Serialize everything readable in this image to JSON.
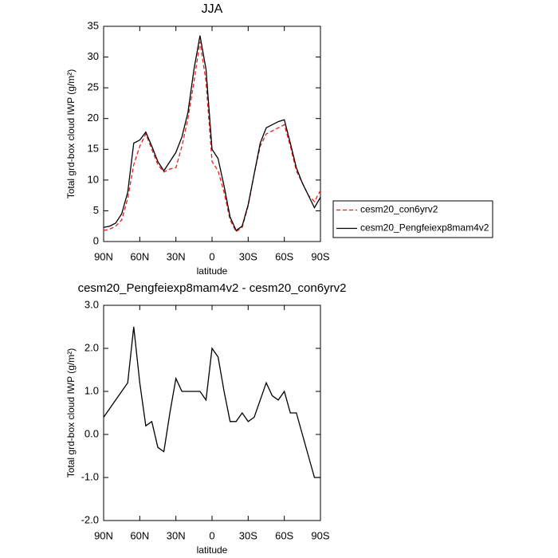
{
  "chart_data": [
    {
      "type": "line",
      "title": "JJA",
      "xlabel": "latitude",
      "ylabel": "Total grd-box cloud IWP (g/m²)",
      "x": [
        90,
        85,
        80,
        75,
        70,
        65,
        60,
        55,
        50,
        45,
        40,
        35,
        30,
        25,
        20,
        15,
        10,
        5,
        0,
        -5,
        -10,
        -15,
        -20,
        -25,
        -30,
        -35,
        -40,
        -45,
        -50,
        -55,
        -60,
        -65,
        -70,
        -75,
        -80,
        -85,
        -90
      ],
      "series": [
        {
          "name": "cesm20_con6yrv2",
          "color": "#e8201c",
          "dash": true,
          "values": [
            1.8,
            2,
            2.5,
            3.5,
            7,
            12.5,
            15.5,
            17.5,
            15,
            12.5,
            11.3,
            11.8,
            12,
            15.5,
            20,
            26,
            32.5,
            26,
            13,
            11.5,
            8,
            3.5,
            1.6,
            2.3,
            5.8,
            11,
            15.5,
            17.5,
            18,
            18.5,
            19,
            15.5,
            11.5,
            9.5,
            7.5,
            6.5,
            8.3
          ]
        },
        {
          "name": "cesm20_Pengfeiexp8mam4v2",
          "color": "#000000",
          "dash": false,
          "values": [
            2.3,
            2.5,
            3,
            4.5,
            8,
            16,
            16.5,
            17.8,
            15.5,
            13,
            11.5,
            13,
            14.5,
            17,
            21,
            28,
            33.5,
            28,
            15,
            13.5,
            9,
            4,
            1.8,
            2.5,
            6,
            11,
            16,
            18.5,
            19,
            19.5,
            19.8,
            16,
            12,
            9.5,
            7.5,
            5.5,
            7.2
          ]
        }
      ],
      "xlim": [
        90,
        -90
      ],
      "xticks": [
        {
          "value": 90,
          "label": "90N"
        },
        {
          "value": 60,
          "label": "60N"
        },
        {
          "value": 30,
          "label": "30N"
        },
        0,
        {
          "value": -30,
          "label": "30S"
        },
        {
          "value": -60,
          "label": "60S"
        },
        {
          "value": -90,
          "label": "90S"
        }
      ],
      "ylim": [
        0,
        35
      ],
      "yticks": [
        0,
        5,
        10,
        15,
        20,
        25,
        30,
        35
      ],
      "legend": "right"
    },
    {
      "type": "line",
      "title": "cesm20_Pengfeiexp8mam4v2 - cesm20_con6yrv2",
      "xlabel": "latitude",
      "ylabel": "Total grd-box cloud IWP (g/m²)",
      "x": [
        90,
        85,
        80,
        75,
        70,
        65,
        60,
        55,
        50,
        45,
        40,
        35,
        30,
        25,
        20,
        15,
        10,
        5,
        0,
        -5,
        -10,
        -15,
        -20,
        -25,
        -30,
        -35,
        -40,
        -45,
        -50,
        -55,
        -60,
        -65,
        -70,
        -75,
        -80,
        -85,
        -90
      ],
      "series": [
        {
          "color": "#000000",
          "dash": false,
          "values": [
            0.4,
            0.6,
            0.8,
            1.0,
            1.2,
            2.5,
            1.2,
            0.2,
            0.3,
            -0.3,
            -0.4,
            0.5,
            1.3,
            1.0,
            1.0,
            1.0,
            1.0,
            0.8,
            2.0,
            1.8,
            1.0,
            0.3,
            0.3,
            0.5,
            0.3,
            0.4,
            0.8,
            1.2,
            0.9,
            0.8,
            1.0,
            0.5,
            0.5,
            0.0,
            -0.5,
            -1.0,
            -1.0
          ]
        }
      ],
      "xlim": [
        90,
        -90
      ],
      "xticks": [
        {
          "value": 90,
          "label": "90N"
        },
        {
          "value": 60,
          "label": "60N"
        },
        {
          "value": 30,
          "label": "30N"
        },
        0,
        {
          "value": -30,
          "label": "30S"
        },
        {
          "value": -60,
          "label": "60S"
        },
        {
          "value": -90,
          "label": "90S"
        }
      ],
      "ylim": [
        -2,
        3
      ],
      "yticks": [
        {
          "value": -2,
          "label": "-2.0"
        },
        {
          "value": -1,
          "label": "-1.0"
        },
        {
          "value": 0,
          "label": "0.0"
        },
        {
          "value": 1,
          "label": "1.0"
        },
        {
          "value": 2,
          "label": "2.0"
        },
        {
          "value": 3,
          "label": "3.0"
        }
      ]
    }
  ]
}
